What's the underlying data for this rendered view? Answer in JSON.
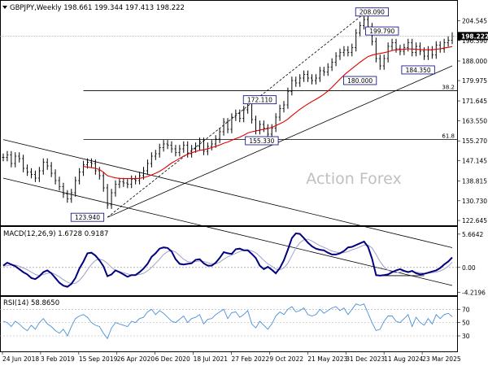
{
  "header": {
    "symbol_line": "GBPJPY,Weekly 198.661 199.344 197.413 198.222"
  },
  "watermark": "Action Forex",
  "colors": {
    "price_bars": "#000000",
    "sma": "#e00000",
    "trendline": "#000000",
    "fib": "#000000",
    "macd": "#000080",
    "signal": "#a0a0c8",
    "rsi": "#4a90d9",
    "label_box": "#000080",
    "current_price_bg": "#000000",
    "watermark": "#c0c0c0"
  },
  "chart_data": [
    {
      "type": "line",
      "name": "price",
      "title": "GBPJPY,Weekly",
      "ohlc_last": {
        "open": 198.661,
        "high": 199.344,
        "low": 197.413,
        "close": 198.222
      },
      "current_price": "198.222",
      "ylim": [
        121.0,
        211.0
      ],
      "y_ticks": [
        "204.545",
        "196.390",
        "188.000",
        "179.975",
        "171.645",
        "163.550",
        "155.270",
        "147.145",
        "138.815",
        "130.730",
        "122.645"
      ],
      "x_ticks": [
        "24 Jun 2018",
        "3 Feb 2019",
        "15 Sep 2019",
        "26 Apr 2020",
        "6 Dec 2020",
        "18 Jul 2021",
        "27 Feb 2022",
        "9 Oct 2022",
        "21 May 2023",
        "31 Dec 2023",
        "11 Aug 2024",
        "23 Mar 2025"
      ],
      "close_series": [
        148.5,
        149.5,
        146.0,
        149.0,
        148.0,
        144.0,
        142.5,
        141.5,
        140.0,
        143.0,
        146.5,
        145.0,
        142.0,
        139.0,
        136.5,
        133.5,
        131.5,
        134.0,
        139.0,
        142.5,
        145.5,
        146.5,
        146.0,
        143.0,
        141.0,
        136.0,
        129.0,
        134.0,
        137.5,
        138.5,
        138.0,
        137.5,
        139.5,
        139.0,
        141.0,
        143.0,
        146.0,
        149.0,
        150.0,
        152.5,
        154.0,
        153.5,
        152.0,
        150.5,
        152.0,
        153.5,
        150.0,
        152.0,
        153.0,
        155.0,
        151.0,
        153.0,
        154.0,
        156.0,
        159.0,
        163.0,
        160.0,
        165.0,
        166.5,
        164.5,
        168.0,
        170.5,
        164.0,
        159.5,
        162.0,
        160.5,
        158.0,
        160.5,
        165.0,
        168.5,
        170.0,
        175.5,
        180.0,
        179.0,
        181.0,
        182.5,
        181.0,
        180.0,
        181.0,
        184.0,
        183.5,
        185.5,
        187.5,
        190.0,
        191.5,
        192.5,
        191.5,
        193.5,
        199.5,
        202.5,
        205.0,
        202.0,
        196.0,
        189.0,
        186.0,
        189.0,
        194.0,
        195.5,
        193.0,
        192.0,
        193.5,
        195.5,
        191.5,
        194.0,
        192.0,
        190.0,
        192.5,
        190.5,
        194.5,
        193.0,
        195.5,
        196.5,
        198.2
      ],
      "sma_series": [
        null,
        null,
        null,
        null,
        null,
        null,
        null,
        null,
        null,
        null,
        null,
        null,
        null,
        null,
        null,
        null,
        null,
        null,
        null,
        null,
        144.8,
        144.5,
        144.3,
        144.0,
        143.5,
        142.4,
        141.0,
        140.5,
        140.1,
        139.9,
        139.8,
        139.8,
        139.8,
        139.8,
        139.9,
        140.2,
        140.7,
        141.3,
        142.0,
        142.8,
        143.8,
        145.0,
        146.2,
        147.1,
        148.1,
        149.0,
        149.8,
        150.4,
        150.9,
        151.4,
        151.6,
        152.0,
        152.5,
        153.0,
        153.6,
        154.3,
        154.8,
        155.5,
        156.2,
        156.8,
        157.6,
        158.5,
        159.0,
        159.3,
        159.7,
        160.0,
        160.3,
        160.8,
        161.5,
        162.3,
        163.1,
        164.2,
        165.6,
        166.9,
        168.2,
        169.3,
        170.4,
        171.4,
        172.3,
        173.3,
        174.4,
        175.7,
        177.2,
        178.9,
        180.6,
        182.2,
        183.6,
        184.9,
        186.2,
        187.5,
        188.7,
        189.8,
        190.4,
        190.8,
        191.1,
        191.4,
        191.8,
        192.3,
        192.6,
        192.7,
        192.8,
        193.0,
        192.9,
        192.8,
        192.7,
        192.6,
        192.6,
        192.6,
        192.8,
        193.0,
        193.3,
        193.6,
        193.9
      ],
      "trendlines": [
        {
          "x0": 0,
          "y0": 155.8,
          "x1": 112,
          "y1": 111.5
        },
        {
          "x0": 0,
          "y0": 140.0,
          "x1": 112,
          "y1": 96.0
        },
        {
          "x0": 26,
          "y0": 123.94,
          "x1": 112,
          "y1": 186.0
        },
        {
          "x0": 26,
          "y0": 123.94,
          "x1": 92,
          "y1": 210.0
        }
      ],
      "fib_levels": [
        {
          "label": "61.8",
          "value": 155.79,
          "x_start": 20
        },
        {
          "label": "38.2",
          "value": 175.85,
          "x_start": 20
        }
      ],
      "annotations": [
        {
          "text": "208.090",
          "x": 92,
          "y": 208.09
        },
        {
          "text": "199.790",
          "x": 94.5,
          "y": 200.3
        },
        {
          "text": "184.350",
          "x": 103.5,
          "y": 184.35
        },
        {
          "text": "180.000",
          "x": 89,
          "y": 180.0
        },
        {
          "text": "172.110",
          "x": 64,
          "y": 172.11
        },
        {
          "text": "155.330",
          "x": 64.5,
          "y": 155.33
        },
        {
          "text": "123.940",
          "x": 21,
          "y": 123.94
        }
      ]
    },
    {
      "type": "line",
      "name": "macd",
      "title": "MACD(12,26,9) 1.6728 0.9187",
      "ylim": [
        -4.6,
        6.2
      ],
      "y_ticks": [
        "5.6642",
        "0.00",
        "-4.2196"
      ],
      "y_tick_values": [
        5.6642,
        0.0,
        -4.2196
      ],
      "macd_values": [
        0.3,
        0.8,
        0.5,
        0.2,
        -0.3,
        -0.8,
        -1.2,
        -1.8,
        -2.0,
        -1.5,
        -0.8,
        -0.5,
        -1.0,
        -1.8,
        -2.6,
        -3.1,
        -3.3,
        -2.8,
        -1.8,
        -0.2,
        1.0,
        2.4,
        2.5,
        2.0,
        1.2,
        0.2,
        -1.5,
        -1.2,
        -0.5,
        -0.8,
        -1.2,
        -1.6,
        -1.3,
        -1.3,
        -0.8,
        -0.2,
        0.6,
        1.8,
        2.4,
        3.2,
        3.4,
        3.3,
        2.7,
        1.4,
        0.6,
        0.5,
        0.6,
        0.7,
        1.3,
        1.4,
        0.7,
        0.3,
        0.3,
        0.8,
        1.6,
        2.6,
        2.4,
        2.3,
        3.1,
        3.2,
        2.9,
        2.9,
        2.3,
        1.6,
        0.3,
        -0.3,
        0.1,
        -0.4,
        -1.0,
        -0.1,
        1.2,
        3.0,
        5.0,
        5.8,
        5.7,
        5.0,
        4.2,
        3.6,
        3.2,
        3.0,
        2.9,
        2.5,
        2.2,
        2.2,
        2.4,
        2.8,
        3.4,
        3.5,
        3.8,
        4.1,
        4.4,
        3.5,
        1.5,
        -1.3,
        -1.4,
        -1.3,
        -1.2,
        -0.8,
        -0.5,
        -0.3,
        -0.6,
        -0.8,
        -0.6,
        -1.0,
        -1.2,
        -1.1,
        -0.9,
        -0.7,
        -0.5,
        -0.1,
        0.5,
        1.0,
        1.7
      ],
      "signal_values": [
        0.2,
        0.3,
        0.4,
        0.4,
        0.2,
        -0.1,
        -0.4,
        -0.8,
        -1.2,
        -1.4,
        -1.2,
        -1.0,
        -0.9,
        -1.2,
        -1.6,
        -2.1,
        -2.5,
        -2.8,
        -2.7,
        -2.2,
        -1.4,
        -0.4,
        0.5,
        1.2,
        1.4,
        1.2,
        0.7,
        0.0,
        -0.5,
        -0.7,
        -0.9,
        -1.1,
        -1.3,
        -1.3,
        -1.2,
        -1.0,
        -0.6,
        0.0,
        0.7,
        1.4,
        2.2,
        2.7,
        2.9,
        2.6,
        2.0,
        1.4,
        1.0,
        0.9,
        1.0,
        1.1,
        1.0,
        0.8,
        0.6,
        0.6,
        0.9,
        1.4,
        1.8,
        2.1,
        2.4,
        2.7,
        2.9,
        3.0,
        2.8,
        2.5,
        1.9,
        1.2,
        0.6,
        0.2,
        -0.3,
        -0.4,
        -0.1,
        0.7,
        2.0,
        3.3,
        4.2,
        4.7,
        4.8,
        4.5,
        4.1,
        3.7,
        3.4,
        3.1,
        2.8,
        2.6,
        2.5,
        2.5,
        2.7,
        3.0,
        3.2,
        3.5,
        3.8,
        3.8,
        3.3,
        2.2,
        1.0,
        0.1,
        -0.5,
        -0.8,
        -0.9,
        -0.8,
        -0.7,
        -0.7,
        -0.7,
        -0.8,
        -0.9,
        -1.0,
        -1.0,
        -0.9,
        -0.8,
        -0.6,
        -0.3,
        0.2,
        0.9
      ],
      "hline": {
        "value": -1.4,
        "x0": 93,
        "x1": 105
      }
    },
    {
      "type": "line",
      "name": "rsi",
      "title": "RSI(14) 58.8650",
      "ylim": [
        8,
        85
      ],
      "y_ticks": [
        "70",
        "50",
        "30"
      ],
      "y_tick_values": [
        70,
        50,
        30
      ],
      "rsi_values": [
        52,
        50,
        44,
        52,
        48,
        42,
        38,
        46,
        40,
        50,
        56,
        48,
        44,
        38,
        34,
        40,
        30,
        44,
        56,
        60,
        62,
        58,
        50,
        46,
        44,
        34,
        26,
        42,
        50,
        48,
        46,
        44,
        52,
        50,
        56,
        58,
        66,
        70,
        62,
        68,
        64,
        58,
        52,
        50,
        55,
        60,
        50,
        56,
        58,
        62,
        48,
        55,
        56,
        62,
        66,
        70,
        56,
        65,
        66,
        58,
        62,
        68,
        48,
        42,
        52,
        46,
        40,
        48,
        60,
        66,
        62,
        70,
        74,
        66,
        68,
        72,
        62,
        60,
        62,
        70,
        64,
        68,
        72,
        74,
        68,
        72,
        62,
        70,
        78,
        76,
        78,
        64,
        50,
        38,
        40,
        52,
        60,
        60,
        52,
        50,
        56,
        62,
        44,
        58,
        50,
        46,
        56,
        48,
        62,
        56,
        62,
        64,
        58.865
      ]
    }
  ]
}
